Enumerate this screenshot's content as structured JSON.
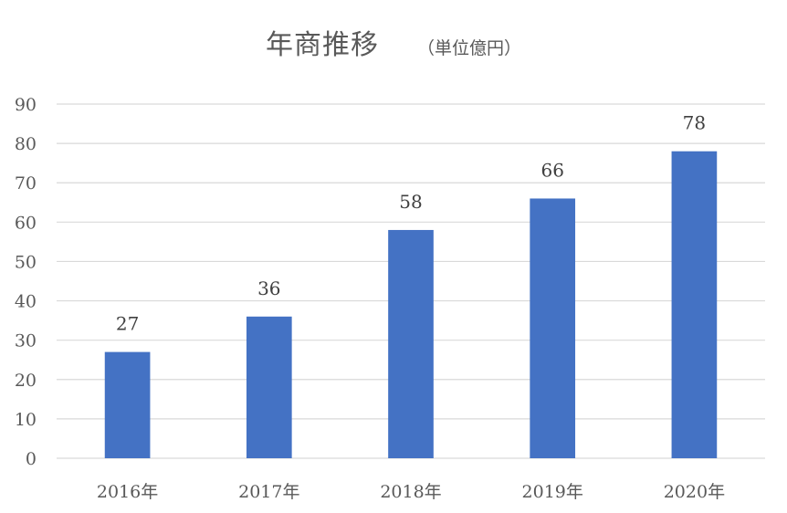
{
  "chart_data": {
    "type": "bar",
    "title": "年商推移",
    "subtitle": "（単位億円）",
    "categories": [
      "2016年",
      "2017年",
      "2018年",
      "2019年",
      "2020年"
    ],
    "series": [
      {
        "values": [
          27,
          36,
          58,
          66,
          78
        ]
      }
    ],
    "ylim": [
      0,
      90
    ],
    "yticks": [
      0,
      10,
      20,
      30,
      40,
      50,
      60,
      70,
      80,
      90
    ],
    "data_labels": true,
    "grid": true,
    "legend": "none",
    "colors": {
      "bar": "#4472c4",
      "grid": "#d9d9d9",
      "text": "#595959"
    }
  }
}
